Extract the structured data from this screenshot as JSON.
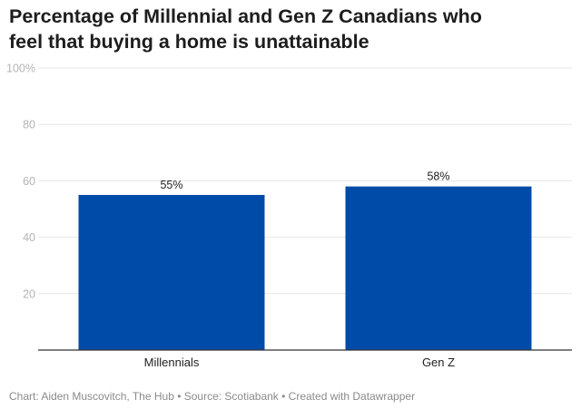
{
  "chart_data": {
    "type": "bar",
    "title": "Percentage of Millennial and Gen Z Canadians who feel that buying a home is unattainable",
    "categories": [
      "Millennials",
      "Gen Z"
    ],
    "values": [
      55,
      58
    ],
    "value_labels": [
      "55%",
      "58%"
    ],
    "xlabel": "",
    "ylabel": "",
    "ylim": [
      0,
      100
    ],
    "y_ticks": [
      {
        "value": 100,
        "label": "100%"
      },
      {
        "value": 80,
        "label": "80"
      },
      {
        "value": 60,
        "label": "60"
      },
      {
        "value": 40,
        "label": "40"
      },
      {
        "value": 20,
        "label": "20"
      }
    ],
    "grid": true,
    "bar_color": "#004ba8",
    "grid_color": "#e6e6e6",
    "baseline_color": "#333333"
  },
  "footer": {
    "credit": "Chart: Aiden Muscovitch, The Hub • Source: Scotiabank • Created with Datawrapper"
  }
}
